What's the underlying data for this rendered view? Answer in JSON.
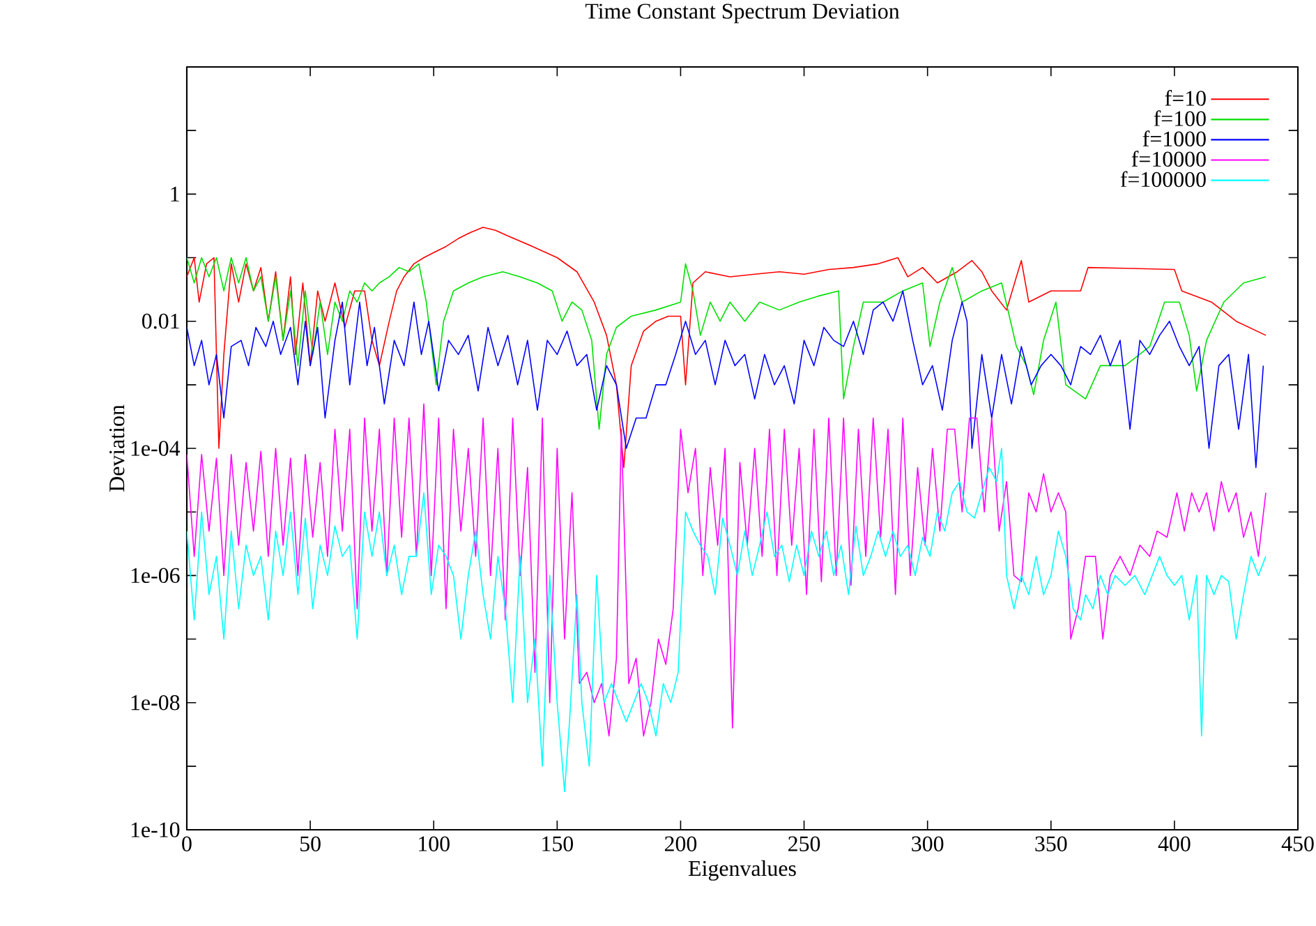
{
  "chart_data": {
    "type": "line",
    "title": "Time Constant Spectrum Deviation",
    "xlabel": "Eigenvalues",
    "ylabel": "Deviation",
    "log": true,
    "legend": "top right",
    "line_style": "solid",
    "xlim": [
      0,
      450
    ],
    "xticks": [
      0,
      50,
      100,
      150,
      200,
      250,
      300,
      350,
      400,
      450
    ],
    "ylim": [
      1e-10,
      100
    ],
    "yticks": [
      {
        "value": 1e-10,
        "label": "1e-10"
      },
      {
        "value": 1e-09,
        "label": null
      },
      {
        "value": 1e-08,
        "label": "1e-08"
      },
      {
        "value": 1e-07,
        "label": null
      },
      {
        "value": 1e-06,
        "label": "1e-06"
      },
      {
        "value": 1e-05,
        "label": null
      },
      {
        "value": 0.0001,
        "label": "1e-04"
      },
      {
        "value": 0.001,
        "label": null
      },
      0.01,
      {
        "value": 0.1,
        "label": null
      },
      1,
      {
        "value": 10,
        "label": null
      },
      {
        "value": 100,
        "label": null
      }
    ],
    "series": [
      {
        "name": "f=10",
        "color": "#ff0000",
        "x": [
          0,
          3,
          5,
          8,
          11,
          13,
          15,
          18,
          21,
          24,
          27,
          30,
          33,
          36,
          39,
          42,
          44,
          47,
          50,
          53,
          56,
          60,
          64,
          68,
          72,
          75,
          78,
          82,
          85,
          88,
          92,
          96,
          100,
          105,
          110,
          115,
          120,
          125,
          130,
          140,
          150,
          158,
          165,
          170,
          174,
          177,
          180,
          185,
          190,
          195,
          200,
          202,
          205,
          210,
          220,
          230,
          240,
          250,
          260,
          270,
          280,
          288,
          292,
          298,
          304,
          312,
          318,
          322,
          326,
          332,
          336,
          338,
          341,
          350,
          362,
          365,
          380,
          400,
          403,
          415,
          425,
          437
        ],
        "values": [
          0.05,
          0.1,
          0.02,
          0.08,
          0.1,
          0.0001,
          0.003,
          0.08,
          0.02,
          0.08,
          0.03,
          0.07,
          0.01,
          0.06,
          0.005,
          0.05,
          0.003,
          0.04,
          0.002,
          0.03,
          0.01,
          0.04,
          0.008,
          0.03,
          0.03,
          0.005,
          0.002,
          0.01,
          0.03,
          0.05,
          0.08,
          0.1,
          0.12,
          0.15,
          0.2,
          0.25,
          0.3,
          0.27,
          0.22,
          0.15,
          0.1,
          0.06,
          0.02,
          0.006,
          0.001,
          5e-05,
          0.002,
          0.007,
          0.01,
          0.012,
          0.012,
          0.001,
          0.04,
          0.06,
          0.05,
          0.055,
          0.06,
          0.055,
          0.065,
          0.07,
          0.08,
          0.1,
          0.05,
          0.07,
          0.04,
          0.06,
          0.09,
          0.06,
          0.03,
          0.015,
          0.05,
          0.09,
          0.02,
          0.03,
          0.03,
          0.07,
          0.068,
          0.065,
          0.03,
          0.02,
          0.01,
          0.006
        ]
      },
      {
        "name": "f=100",
        "color": "#00e000",
        "x": [
          0,
          3,
          6,
          9,
          12,
          15,
          18,
          21,
          24,
          27,
          30,
          33,
          36,
          39,
          42,
          45,
          48,
          51,
          54,
          57,
          60,
          63,
          66,
          69,
          72,
          75,
          78,
          82,
          86,
          90,
          94,
          97,
          101,
          104,
          108,
          114,
          120,
          128,
          135,
          142,
          148,
          152,
          156,
          160,
          164,
          167,
          170,
          174,
          180,
          190,
          200,
          202,
          205,
          208,
          212,
          216,
          220,
          226,
          232,
          240,
          248,
          256,
          264,
          266,
          270,
          274,
          282,
          290,
          298,
          301,
          305,
          310,
          314,
          322,
          330,
          336,
          340,
          343,
          347,
          352,
          356,
          364,
          370,
          380,
          390,
          396,
          402,
          406,
          409,
          413,
          420,
          428,
          437
        ],
        "values": [
          0.1,
          0.04,
          0.1,
          0.05,
          0.1,
          0.03,
          0.1,
          0.04,
          0.1,
          0.03,
          0.05,
          0.01,
          0.05,
          0.005,
          0.03,
          0.002,
          0.03,
          0.003,
          0.02,
          0.003,
          0.02,
          0.01,
          0.03,
          0.02,
          0.04,
          0.03,
          0.04,
          0.05,
          0.07,
          0.06,
          0.08,
          0.02,
          0.001,
          0.01,
          0.03,
          0.04,
          0.05,
          0.06,
          0.05,
          0.04,
          0.03,
          0.01,
          0.02,
          0.015,
          0.005,
          0.0002,
          0.003,
          0.008,
          0.012,
          0.015,
          0.02,
          0.08,
          0.03,
          0.006,
          0.02,
          0.01,
          0.02,
          0.01,
          0.02,
          0.015,
          0.02,
          0.025,
          0.03,
          0.0006,
          0.004,
          0.02,
          0.02,
          0.03,
          0.04,
          0.004,
          0.02,
          0.07,
          0.02,
          0.03,
          0.04,
          0.004,
          0.002,
          0.0007,
          0.005,
          0.02,
          0.001,
          0.0006,
          0.002,
          0.002,
          0.004,
          0.02,
          0.02,
          0.006,
          0.0008,
          0.005,
          0.02,
          0.04,
          0.05
        ]
      },
      {
        "name": "f=1000",
        "color": "#0000ff",
        "x": [
          0,
          3,
          6,
          9,
          12,
          15,
          18,
          22,
          25,
          28,
          32,
          35,
          38,
          42,
          45,
          48,
          50,
          53,
          56,
          60,
          63,
          66,
          70,
          73,
          76,
          80,
          84,
          88,
          92,
          95,
          98,
          102,
          106,
          110,
          114,
          118,
          122,
          126,
          130,
          134,
          138,
          142,
          146,
          150,
          154,
          158,
          162,
          166,
          170,
          174,
          178,
          182,
          186,
          190,
          194,
          198,
          202,
          206,
          210,
          214,
          218,
          222,
          226,
          230,
          234,
          238,
          242,
          246,
          250,
          254,
          258,
          262,
          266,
          270,
          274,
          278,
          282,
          286,
          290,
          294,
          298,
          302,
          306,
          310,
          314,
          316,
          318,
          322,
          326,
          330,
          334,
          338,
          342,
          346,
          350,
          354,
          358,
          362,
          366,
          370,
          374,
          378,
          382,
          386,
          390,
          394,
          398,
          402,
          406,
          410,
          414,
          418,
          422,
          426,
          430,
          433,
          436
        ],
        "values": [
          0.008,
          0.002,
          0.005,
          0.001,
          0.003,
          0.0003,
          0.004,
          0.005,
          0.002,
          0.008,
          0.004,
          0.01,
          0.003,
          0.008,
          0.001,
          0.01,
          0.002,
          0.008,
          0.0003,
          0.005,
          0.02,
          0.001,
          0.02,
          0.002,
          0.008,
          0.0005,
          0.005,
          0.002,
          0.02,
          0.003,
          0.01,
          0.0008,
          0.005,
          0.003,
          0.006,
          0.0008,
          0.008,
          0.002,
          0.006,
          0.001,
          0.005,
          0.0004,
          0.005,
          0.003,
          0.007,
          0.002,
          0.003,
          0.0004,
          0.002,
          0.001,
          0.0001,
          0.0003,
          0.0003,
          0.001,
          0.001,
          0.003,
          0.01,
          0.003,
          0.005,
          0.001,
          0.005,
          0.002,
          0.003,
          0.0006,
          0.003,
          0.001,
          0.002,
          0.0005,
          0.005,
          0.002,
          0.008,
          0.005,
          0.004,
          0.01,
          0.003,
          0.015,
          0.02,
          0.01,
          0.03,
          0.005,
          0.001,
          0.002,
          0.0004,
          0.005,
          0.02,
          0.01,
          0.0001,
          0.003,
          0.0003,
          0.003,
          0.0005,
          0.004,
          0.001,
          0.002,
          0.003,
          0.002,
          0.001,
          0.004,
          0.003,
          0.006,
          0.002,
          0.005,
          0.0002,
          0.005,
          0.003,
          0.006,
          0.01,
          0.004,
          0.002,
          0.004,
          0.0001,
          0.002,
          0.003,
          0.0002,
          0.003,
          5e-05,
          0.002
        ]
      },
      {
        "name": "f=10000",
        "color": "#ff00ff",
        "x": [
          0,
          3,
          6,
          9,
          12,
          15,
          18,
          21,
          24,
          27,
          30,
          33,
          36,
          39,
          42,
          45,
          48,
          51,
          54,
          57,
          60,
          63,
          66,
          69,
          72,
          75,
          78,
          81,
          84,
          87,
          90,
          93,
          96,
          99,
          102,
          105,
          108,
          111,
          114,
          117,
          120,
          123,
          126,
          129,
          132,
          135,
          138,
          141,
          144,
          147,
          150,
          153,
          156,
          159,
          162,
          165,
          168,
          171,
          174,
          176,
          179,
          182,
          185,
          188,
          191,
          194,
          197,
          200,
          203,
          206,
          209,
          212,
          215,
          218,
          221,
          224,
          227,
          230,
          233,
          236,
          239,
          242,
          245,
          248,
          251,
          254,
          257,
          260,
          263,
          266,
          269,
          272,
          275,
          278,
          281,
          284,
          287,
          290,
          293,
          296,
          299,
          302,
          305,
          308,
          311,
          314,
          317,
          320,
          323,
          326,
          329,
          332,
          335,
          338,
          341,
          344,
          347,
          350,
          353,
          356,
          358,
          361,
          364,
          368,
          371,
          374,
          378,
          382,
          386,
          390,
          393,
          397,
          401,
          404,
          407,
          410,
          413,
          416,
          419,
          422,
          425,
          428,
          431,
          434,
          437
        ],
        "values": [
          8e-05,
          2e-06,
          8e-05,
          5e-06,
          7e-05,
          1e-06,
          8e-05,
          3e-06,
          6e-05,
          5e-06,
          9e-05,
          2e-06,
          0.0001,
          3e-06,
          7e-05,
          1e-06,
          8e-05,
          4e-06,
          6e-05,
          2e-06,
          0.0002,
          5e-06,
          0.0002,
          3e-07,
          0.0003,
          5e-06,
          0.0002,
          1e-06,
          0.0003,
          4e-06,
          0.0003,
          2e-06,
          0.0005,
          1e-06,
          0.0003,
          3e-07,
          0.0002,
          5e-06,
          0.0001,
          2e-06,
          0.0003,
          1e-06,
          0.0001,
          2e-07,
          0.0003,
          1e-06,
          5e-05,
          3e-08,
          0.0003,
          1e-08,
          0.0001,
          1e-07,
          2e-05,
          2e-08,
          3e-08,
          1e-08,
          2e-08,
          3e-09,
          5e-08,
          0.0002,
          2e-08,
          5e-08,
          3e-09,
          1e-08,
          1e-07,
          4e-08,
          3e-07,
          0.0002,
          2e-05,
          0.0001,
          1e-06,
          5e-05,
          3e-06,
          0.0001,
          4e-09,
          6e-05,
          3e-06,
          0.0001,
          2e-06,
          0.0002,
          1e-06,
          0.0002,
          3e-06,
          0.0001,
          5e-07,
          0.0002,
          8e-07,
          0.0003,
          1e-06,
          0.0003,
          7e-07,
          0.0002,
          2e-06,
          0.0003,
          4e-06,
          0.0002,
          5e-07,
          0.0003,
          1e-06,
          5e-05,
          3e-06,
          0.0001,
          5e-06,
          0.0002,
          0.0002,
          1e-05,
          0.0003,
          0.0003,
          1e-05,
          0.0003,
          5e-06,
          3e-05,
          1e-06,
          8e-07,
          2e-05,
          1e-05,
          4e-05,
          1e-05,
          2e-05,
          1e-05,
          1e-07,
          3e-07,
          2e-06,
          2e-06,
          1e-07,
          1e-06,
          2e-06,
          1e-06,
          3e-06,
          2e-06,
          5e-06,
          4e-06,
          2e-05,
          5e-06,
          2e-05,
          1e-05,
          2e-05,
          5e-06,
          3e-05,
          1e-05,
          2e-05,
          4e-06,
          1e-05,
          2e-06,
          2e-05
        ]
      },
      {
        "name": "f=100000",
        "color": "#00ffff",
        "x": [
          0,
          3,
          6,
          9,
          12,
          15,
          18,
          21,
          24,
          27,
          30,
          33,
          36,
          39,
          42,
          45,
          48,
          51,
          54,
          57,
          60,
          63,
          66,
          69,
          72,
          75,
          78,
          81,
          84,
          87,
          90,
          93,
          96,
          99,
          102,
          105,
          108,
          111,
          114,
          117,
          120,
          123,
          126,
          129,
          132,
          135,
          138,
          141,
          144,
          147,
          150,
          153,
          155,
          158,
          160,
          163,
          166,
          169,
          172,
          175,
          178,
          181,
          184,
          187,
          190,
          193,
          196,
          199,
          202,
          205,
          208,
          211,
          214,
          217,
          220,
          223,
          226,
          229,
          232,
          235,
          238,
          241,
          244,
          247,
          250,
          253,
          256,
          259,
          262,
          265,
          268,
          271,
          274,
          277,
          280,
          283,
          286,
          289,
          292,
          295,
          298,
          301,
          304,
          307,
          310,
          313,
          316,
          319,
          322,
          325,
          328,
          330,
          332,
          335,
          338,
          341,
          344,
          347,
          350,
          353,
          356,
          359,
          362,
          364,
          367,
          370,
          373,
          376,
          380,
          384,
          388,
          391,
          394,
          397,
          400,
          403,
          406,
          409,
          411,
          413,
          416,
          419,
          422,
          425,
          428,
          431,
          434,
          437
        ],
        "values": [
          5e-06,
          2e-07,
          1e-05,
          5e-07,
          2e-06,
          1e-07,
          5e-06,
          3e-07,
          3e-06,
          1e-06,
          2e-06,
          2e-07,
          5e-06,
          1e-06,
          1e-05,
          5e-07,
          8e-06,
          3e-07,
          3e-06,
          1e-06,
          6e-06,
          2e-06,
          3e-06,
          1e-07,
          1e-05,
          2e-06,
          1e-05,
          1e-06,
          3e-06,
          5e-07,
          2e-06,
          2e-06,
          2e-05,
          5e-07,
          3e-06,
          2e-06,
          1e-06,
          1e-07,
          1e-06,
          5e-06,
          5e-07,
          1e-07,
          2e-06,
          3e-07,
          1e-08,
          2e-06,
          1e-08,
          1e-07,
          1e-09,
          1e-06,
          1e-08,
          4e-10,
          5e-09,
          5e-07,
          1e-08,
          1e-09,
          1e-06,
          1e-08,
          2e-08,
          1e-08,
          5e-09,
          1e-08,
          2e-08,
          1e-08,
          3e-09,
          2e-08,
          1e-08,
          3e-08,
          1e-05,
          5e-06,
          3e-06,
          2e-06,
          5e-07,
          8e-06,
          3e-06,
          1e-06,
          5e-06,
          1e-06,
          3e-06,
          1e-05,
          2e-06,
          3e-06,
          8e-07,
          3e-06,
          1e-06,
          5e-06,
          2e-06,
          5e-06,
          1e-06,
          3e-06,
          5e-07,
          6e-06,
          1e-06,
          2e-06,
          5e-06,
          2e-06,
          5e-06,
          2e-06,
          3e-06,
          1e-06,
          4e-06,
          2e-06,
          1e-05,
          5e-06,
          2e-05,
          3e-05,
          1e-05,
          8e-06,
          2e-05,
          5e-05,
          3e-05,
          0.0001,
          1e-06,
          3e-07,
          1e-06,
          5e-07,
          2e-06,
          5e-07,
          1e-06,
          5e-06,
          2e-06,
          3e-07,
          2e-07,
          5e-07,
          3e-07,
          1e-06,
          5e-07,
          1e-06,
          7e-07,
          1e-06,
          5e-07,
          1e-06,
          2e-06,
          1e-06,
          7e-07,
          1e-06,
          2e-07,
          1e-06,
          3e-09,
          1e-06,
          5e-07,
          1e-06,
          8e-07,
          1e-07,
          5e-07,
          2e-06,
          1e-06,
          2e-06
        ]
      }
    ]
  }
}
